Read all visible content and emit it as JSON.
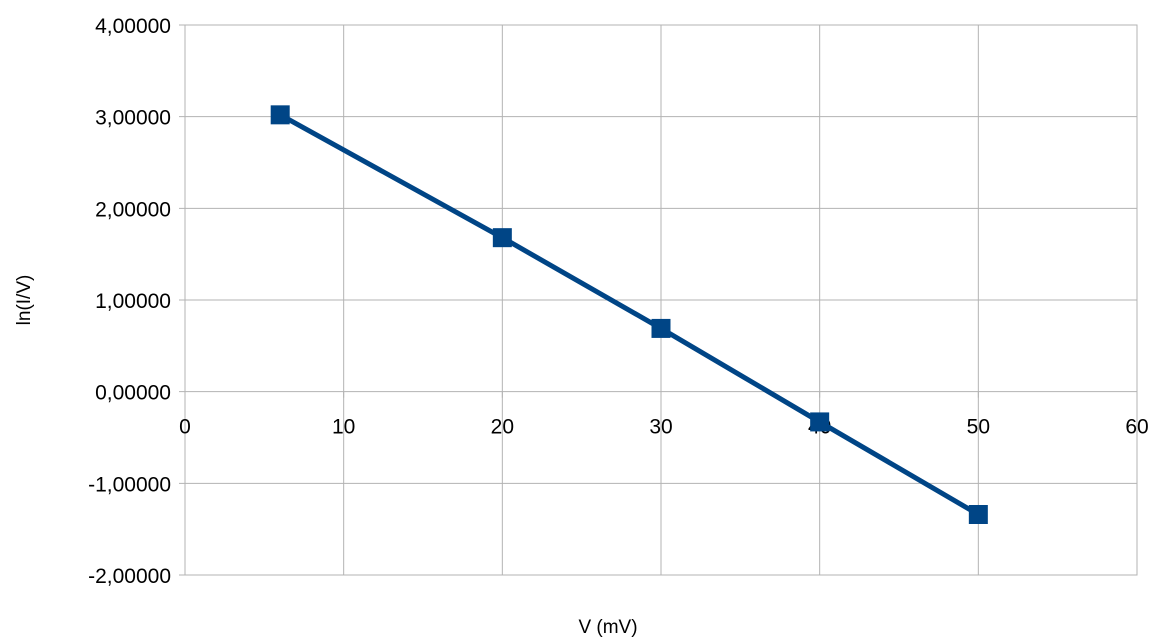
{
  "chart_data": {
    "type": "line",
    "title": "",
    "xlabel": "V (mV)",
    "ylabel": "ln(I/V)",
    "xlim": [
      0,
      60
    ],
    "ylim": [
      -2,
      4
    ],
    "x_ticks": [
      0,
      10,
      20,
      30,
      40,
      50,
      60
    ],
    "y_ticks": [
      4,
      3,
      2,
      1,
      0,
      -1,
      -2
    ],
    "x_tick_labels": [
      "0",
      "10",
      "20",
      "30",
      "40",
      "50",
      "60"
    ],
    "y_tick_labels": [
      "4,00000",
      "3,00000",
      "2,00000",
      "1,00000",
      "0,00000",
      "-1,00000",
      "-2,00000"
    ],
    "grid": true,
    "legend": "none",
    "series": [
      {
        "color": "#004586",
        "marker": "square",
        "x": [
          6,
          20,
          30,
          40,
          50
        ],
        "y": [
          3.02,
          1.68,
          0.69,
          -0.33,
          -1.34
        ]
      }
    ]
  }
}
